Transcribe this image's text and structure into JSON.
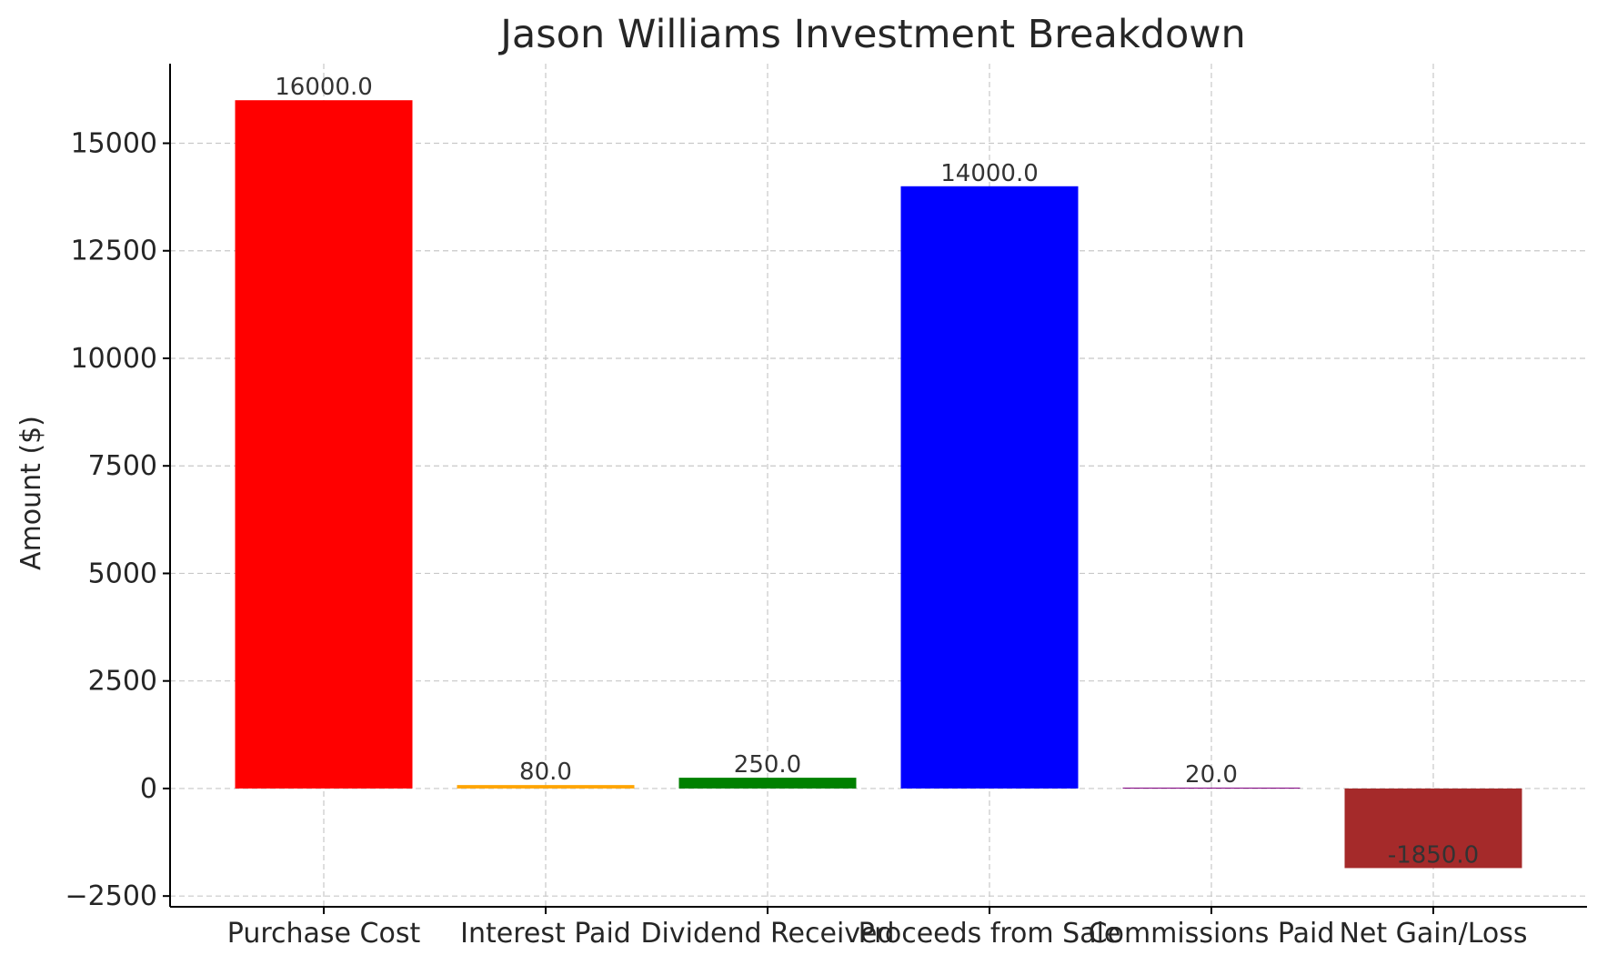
{
  "chart_data": {
    "type": "bar",
    "title": "Jason Williams Investment Breakdown",
    "xlabel": "",
    "ylabel": "Amount ($)",
    "categories": [
      "Purchase Cost",
      "Interest Paid",
      "Dividend Received",
      "Proceeds from Sale",
      "Commissions Paid",
      "Net Gain/Loss"
    ],
    "values": [
      16000.0,
      80.0,
      250.0,
      14000.0,
      20.0,
      -1850.0
    ],
    "value_labels": [
      "16000.0",
      "80.0",
      "250.0",
      "14000.0",
      "20.0",
      "-1850.0"
    ],
    "colors": [
      "#ff0000",
      "#ffa500",
      "#008000",
      "#0000ff",
      "#800080",
      "#a52a2a"
    ],
    "ylim": [
      -2750,
      16850
    ],
    "yticks": [
      -2500,
      0,
      2500,
      5000,
      7500,
      10000,
      12500,
      15000
    ],
    "ytick_labels": [
      "−2500",
      "0",
      "2500",
      "5000",
      "7500",
      "10000",
      "12500",
      "15000"
    ],
    "grid": true,
    "legend": "none"
  }
}
